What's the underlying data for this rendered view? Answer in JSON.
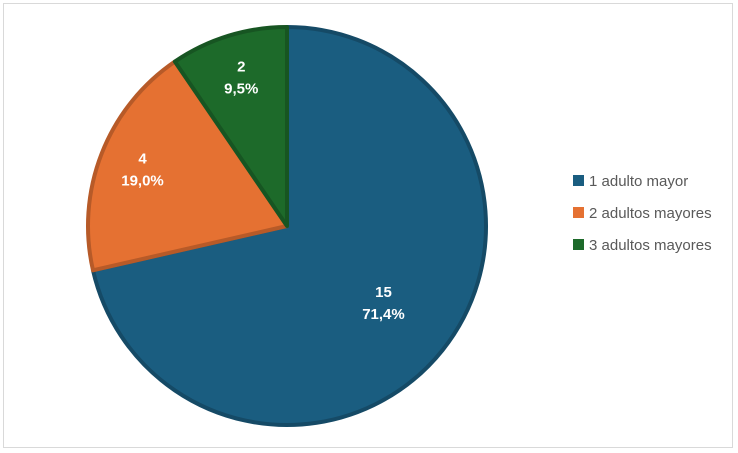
{
  "chart_data": {
    "type": "pie",
    "title": "",
    "categories": [
      "1 adulto mayor",
      "2 adultos mayores",
      "3 adultos mayores"
    ],
    "values": [
      15,
      4,
      2
    ],
    "value_labels": [
      "15",
      "4",
      "2"
    ],
    "percent_labels": [
      "71,4%",
      "19,0%",
      "9,5%"
    ],
    "colors": [
      "#1a5d80",
      "#e57132",
      "#1d6a2a"
    ],
    "legend": "right"
  }
}
